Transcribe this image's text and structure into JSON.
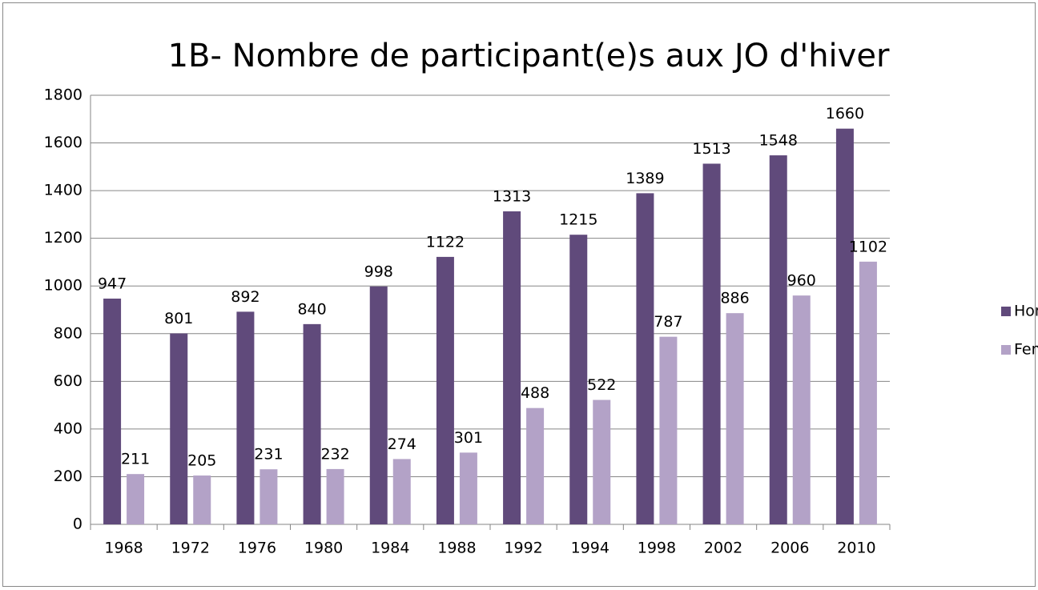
{
  "chart_data": {
    "type": "bar",
    "title": "1B- Nombre de participant(e)s aux JO d'hiver",
    "categories": [
      "1968",
      "1972",
      "1976",
      "1980",
      "1984",
      "1988",
      "1992",
      "1994",
      "1998",
      "2002",
      "2006",
      "2010"
    ],
    "series": [
      {
        "name": "Hommes",
        "color": "#604a7b",
        "values": [
          947,
          801,
          892,
          840,
          998,
          1122,
          1313,
          1215,
          1389,
          1513,
          1548,
          1660
        ]
      },
      {
        "name": "Femmes",
        "color": "#b3a2c7",
        "values": [
          211,
          205,
          231,
          232,
          274,
          301,
          488,
          522,
          787,
          886,
          960,
          1102
        ]
      }
    ],
    "ylim": [
      0,
      1800
    ],
    "yticks": [
      0,
      200,
      400,
      600,
      800,
      1000,
      1200,
      1400,
      1600,
      1800
    ],
    "grid": true,
    "legend": "right"
  }
}
